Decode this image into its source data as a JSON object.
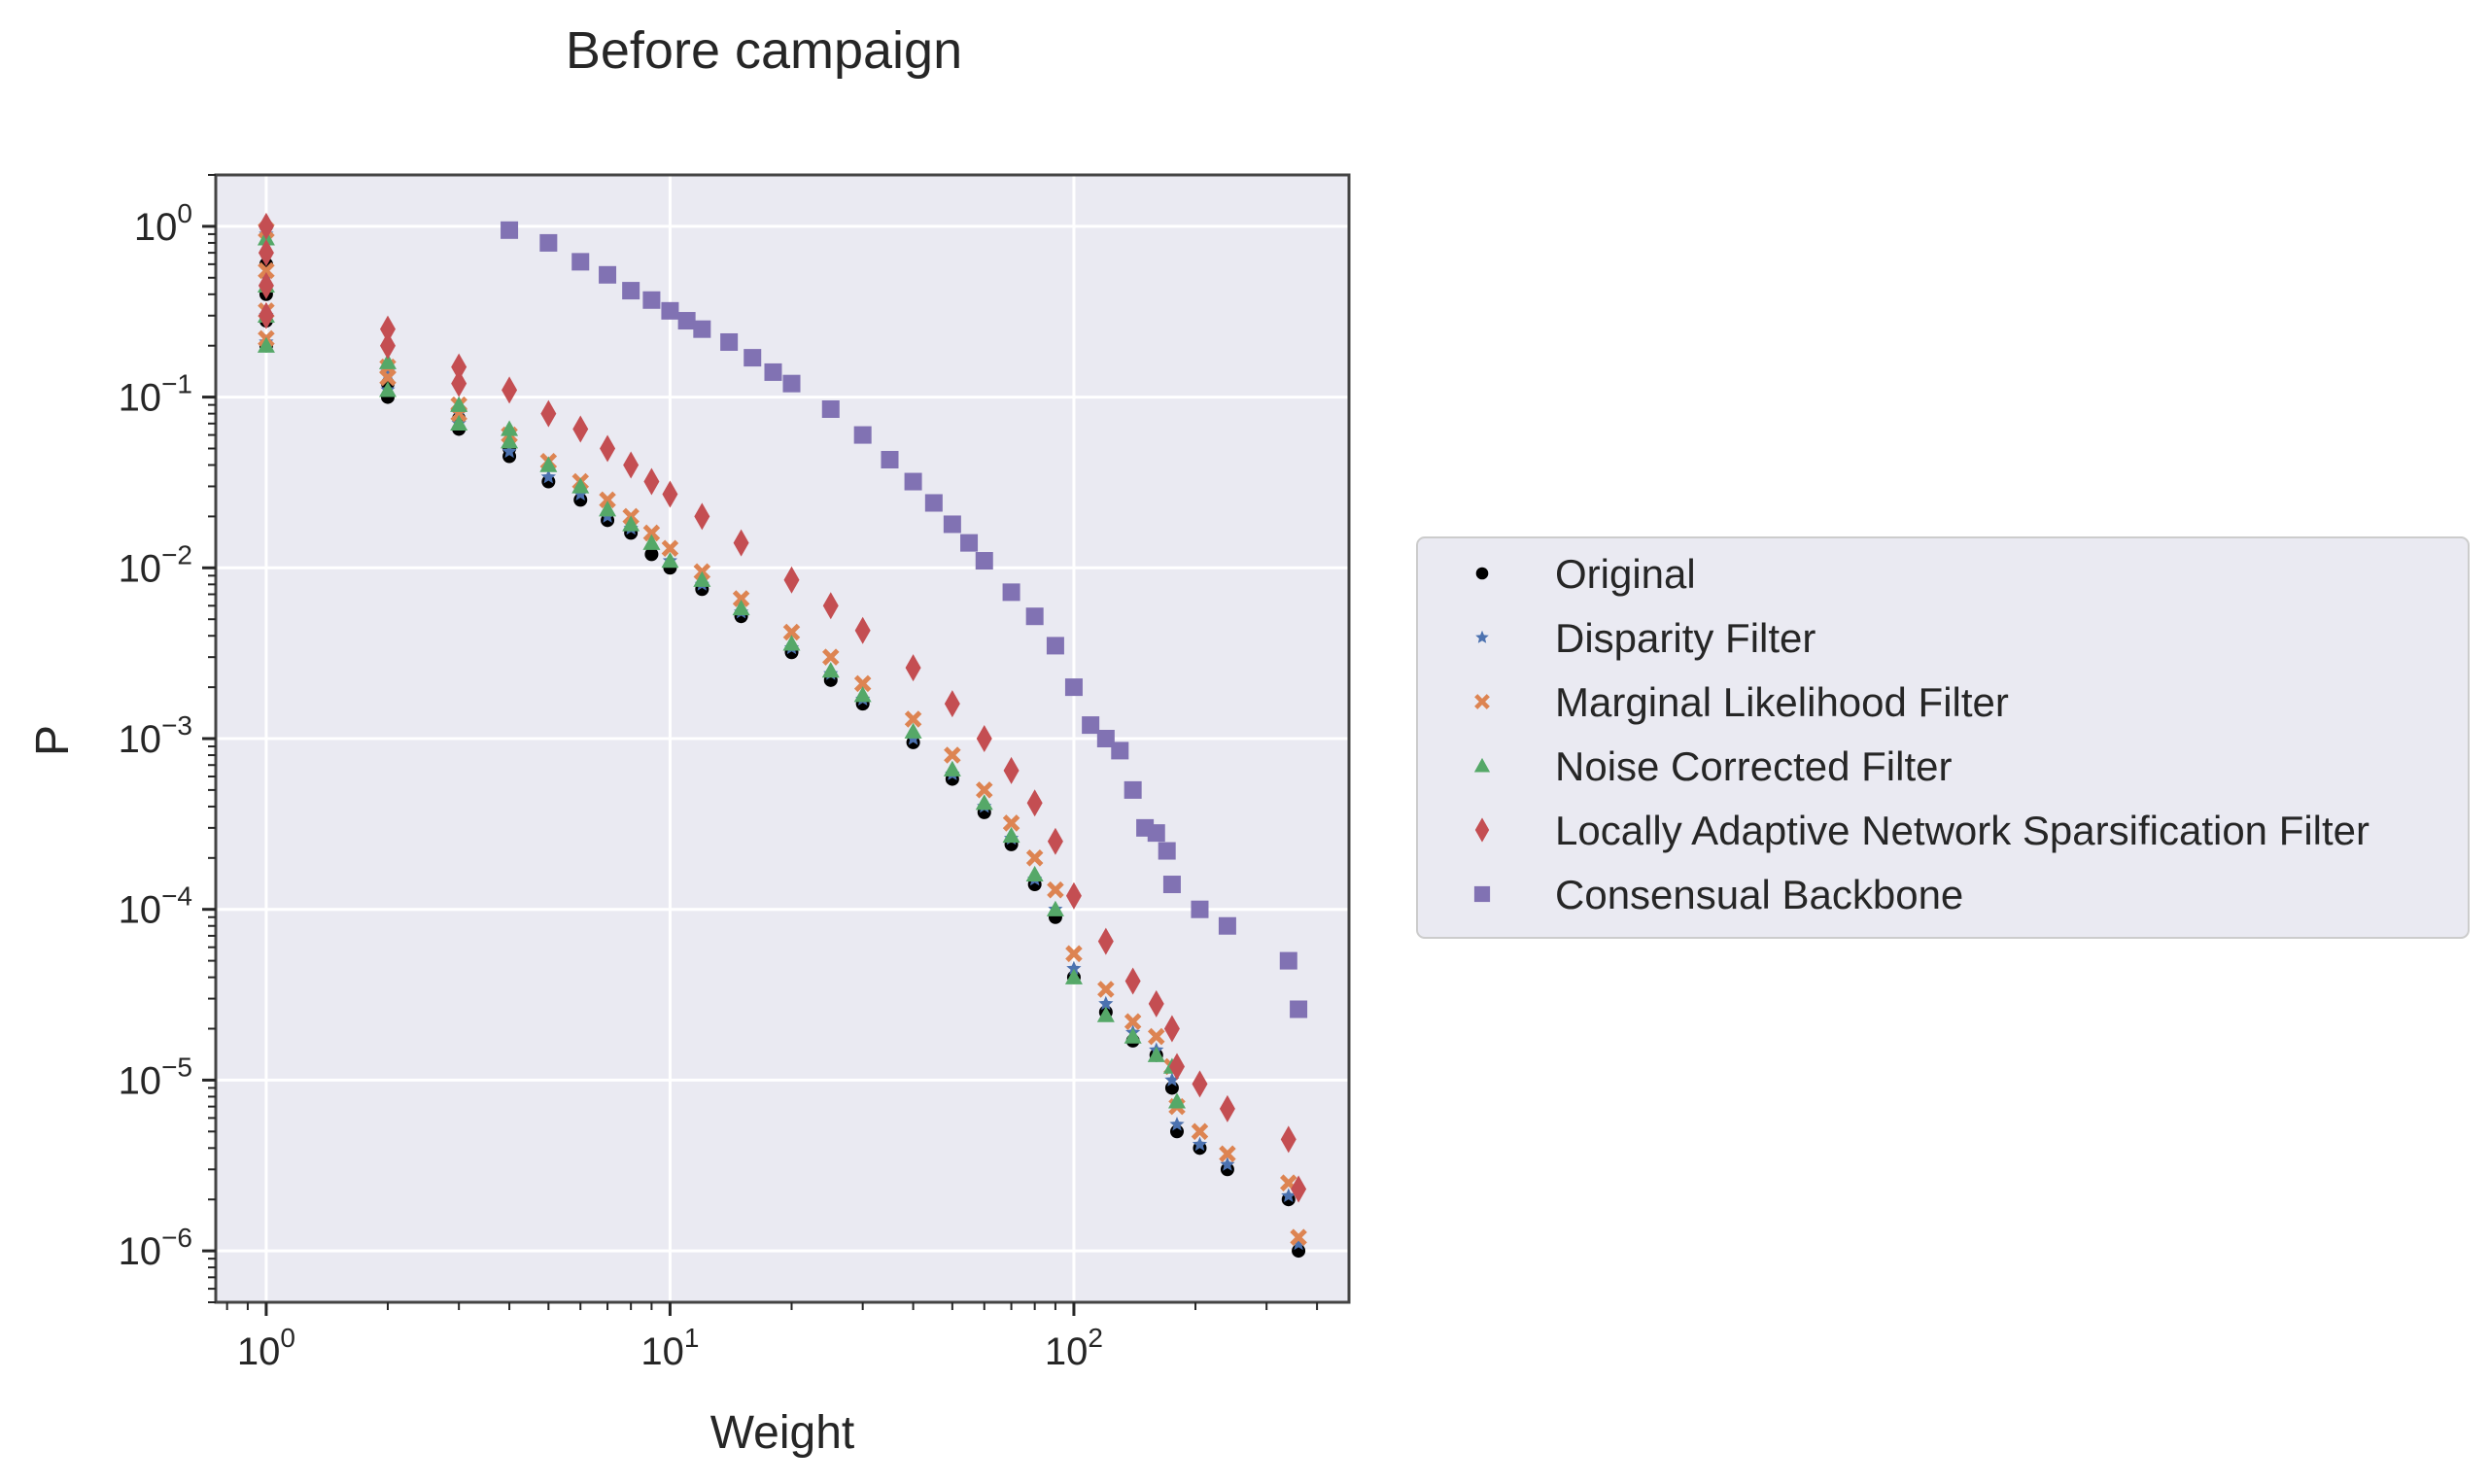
{
  "chart_data": {
    "type": "scatter",
    "title": "Before campaign",
    "xlabel": "Weight",
    "ylabel": "P",
    "x_scale": "log",
    "y_scale": "log",
    "xlim": [
      0.75,
      480
    ],
    "ylim": [
      5e-07,
      2
    ],
    "grid": true,
    "legend_position": "right-outside",
    "x_ticks": [
      {
        "value": 1,
        "base": "10",
        "exp": "0"
      },
      {
        "value": 10,
        "base": "10",
        "exp": "1"
      },
      {
        "value": 100,
        "base": "10",
        "exp": "2"
      }
    ],
    "y_ticks": [
      {
        "value": 1,
        "base": "10",
        "exp": "0"
      },
      {
        "value": 0.1,
        "base": "10",
        "exp": "−1"
      },
      {
        "value": 0.01,
        "base": "10",
        "exp": "−2"
      },
      {
        "value": 0.001,
        "base": "10",
        "exp": "−3"
      },
      {
        "value": 0.0001,
        "base": "10",
        "exp": "−4"
      },
      {
        "value": 1e-05,
        "base": "10",
        "exp": "−5"
      },
      {
        "value": 1e-06,
        "base": "10",
        "exp": "−6"
      }
    ],
    "series": [
      {
        "name": "Original",
        "marker": "circle",
        "color": "#000000",
        "points": [
          [
            1,
            1
          ],
          [
            1,
            0.6
          ],
          [
            1,
            0.4
          ],
          [
            1,
            0.28
          ],
          [
            1,
            0.2
          ],
          [
            2,
            0.1
          ],
          [
            2,
            0.12
          ],
          [
            3,
            0.065
          ],
          [
            3,
            0.075
          ],
          [
            4,
            0.045
          ],
          [
            4,
            0.05
          ],
          [
            5,
            0.032
          ],
          [
            6,
            0.025
          ],
          [
            7,
            0.019
          ],
          [
            8,
            0.016
          ],
          [
            9,
            0.012
          ],
          [
            10,
            0.01
          ],
          [
            12,
            0.0075
          ],
          [
            15,
            0.0052
          ],
          [
            20,
            0.0032
          ],
          [
            25,
            0.0022
          ],
          [
            30,
            0.0016
          ],
          [
            40,
            0.00095
          ],
          [
            50,
            0.00058
          ],
          [
            60,
            0.00037
          ],
          [
            70,
            0.00024
          ],
          [
            80,
            0.00014
          ],
          [
            90,
            9e-05
          ],
          [
            100,
            4e-05
          ],
          [
            120,
            2.5e-05
          ],
          [
            140,
            1.7e-05
          ],
          [
            160,
            1.4e-05
          ],
          [
            175,
            9e-06
          ],
          [
            180,
            5e-06
          ],
          [
            205,
            4e-06
          ],
          [
            240,
            3e-06
          ],
          [
            340,
            2e-06
          ],
          [
            360,
            1e-06
          ]
        ]
      },
      {
        "name": "Disparity Filter",
        "marker": "star",
        "color": "#4c72b0",
        "points": [
          [
            1,
            0.9
          ],
          [
            1,
            0.5
          ],
          [
            1,
            0.3
          ],
          [
            1,
            0.21
          ],
          [
            2,
            0.11
          ],
          [
            2,
            0.14
          ],
          [
            3,
            0.07
          ],
          [
            3,
            0.08
          ],
          [
            4,
            0.048
          ],
          [
            5,
            0.034
          ],
          [
            6,
            0.027
          ],
          [
            7,
            0.02
          ],
          [
            8,
            0.017
          ],
          [
            10,
            0.011
          ],
          [
            12,
            0.008
          ],
          [
            15,
            0.0055
          ],
          [
            20,
            0.0034
          ],
          [
            25,
            0.0024
          ],
          [
            30,
            0.0017
          ],
          [
            40,
            0.001
          ],
          [
            50,
            0.00062
          ],
          [
            60,
            0.0004
          ],
          [
            70,
            0.00026
          ],
          [
            80,
            0.00015
          ],
          [
            90,
            0.0001
          ],
          [
            100,
            4.5e-05
          ],
          [
            120,
            2.8e-05
          ],
          [
            140,
            1.9e-05
          ],
          [
            160,
            1.5e-05
          ],
          [
            175,
            1e-05
          ],
          [
            180,
            5.5e-06
          ],
          [
            205,
            4.2e-06
          ],
          [
            240,
            3.2e-06
          ],
          [
            340,
            2.1e-06
          ],
          [
            360,
            1.1e-06
          ]
        ]
      },
      {
        "name": "Marginal Likelihood Filter",
        "marker": "x",
        "color": "#dd8452",
        "points": [
          [
            1,
            0.95
          ],
          [
            1,
            0.55
          ],
          [
            1,
            0.32
          ],
          [
            1,
            0.22
          ],
          [
            2,
            0.13
          ],
          [
            2,
            0.15
          ],
          [
            3,
            0.08
          ],
          [
            3,
            0.09
          ],
          [
            4,
            0.06
          ],
          [
            5,
            0.042
          ],
          [
            6,
            0.032
          ],
          [
            7,
            0.025
          ],
          [
            8,
            0.02
          ],
          [
            9,
            0.016
          ],
          [
            10,
            0.013
          ],
          [
            12,
            0.0095
          ],
          [
            15,
            0.0066
          ],
          [
            20,
            0.0042
          ],
          [
            25,
            0.003
          ],
          [
            30,
            0.0021
          ],
          [
            40,
            0.0013
          ],
          [
            50,
            0.0008
          ],
          [
            60,
            0.0005
          ],
          [
            70,
            0.00032
          ],
          [
            80,
            0.0002
          ],
          [
            90,
            0.00013
          ],
          [
            100,
            5.5e-05
          ],
          [
            120,
            3.4e-05
          ],
          [
            140,
            2.2e-05
          ],
          [
            160,
            1.8e-05
          ],
          [
            175,
            1.2e-05
          ],
          [
            180,
            7e-06
          ],
          [
            205,
            5e-06
          ],
          [
            240,
            3.7e-06
          ],
          [
            340,
            2.5e-06
          ],
          [
            360,
            1.2e-06
          ]
        ]
      },
      {
        "name": "Noise Corrected Filter",
        "marker": "triangle",
        "color": "#55a868",
        "points": [
          [
            1,
            0.85
          ],
          [
            1,
            0.45
          ],
          [
            1,
            0.3
          ],
          [
            1,
            0.2
          ],
          [
            2,
            0.11
          ],
          [
            2,
            0.16
          ],
          [
            3,
            0.07
          ],
          [
            3,
            0.09
          ],
          [
            4,
            0.055
          ],
          [
            4,
            0.065
          ],
          [
            5,
            0.04
          ],
          [
            6,
            0.03
          ],
          [
            7,
            0.022
          ],
          [
            8,
            0.018
          ],
          [
            9,
            0.014
          ],
          [
            10,
            0.011
          ],
          [
            12,
            0.0085
          ],
          [
            15,
            0.0058
          ],
          [
            20,
            0.0036
          ],
          [
            25,
            0.0025
          ],
          [
            30,
            0.0018
          ],
          [
            40,
            0.0011
          ],
          [
            50,
            0.00066
          ],
          [
            60,
            0.00042
          ],
          [
            70,
            0.00027
          ],
          [
            80,
            0.00016
          ],
          [
            90,
            0.0001
          ],
          [
            100,
            4e-05
          ],
          [
            120,
            2.4e-05
          ],
          [
            140,
            1.8e-05
          ],
          [
            160,
            1.4e-05
          ],
          [
            175,
            1.2e-05
          ],
          [
            180,
            7.5e-06
          ]
        ]
      },
      {
        "name": "Locally Adaptive Network Sparsification Filter",
        "marker": "diamond",
        "color": "#c44e52",
        "points": [
          [
            1,
            1
          ],
          [
            1,
            0.7
          ],
          [
            1,
            0.45
          ],
          [
            1,
            0.3
          ],
          [
            2,
            0.25
          ],
          [
            2,
            0.2
          ],
          [
            3,
            0.15
          ],
          [
            3,
            0.12
          ],
          [
            4,
            0.11
          ],
          [
            5,
            0.08
          ],
          [
            6,
            0.065
          ],
          [
            7,
            0.05
          ],
          [
            8,
            0.04
          ],
          [
            9,
            0.032
          ],
          [
            10,
            0.027
          ],
          [
            12,
            0.02
          ],
          [
            15,
            0.014
          ],
          [
            20,
            0.0085
          ],
          [
            25,
            0.006
          ],
          [
            30,
            0.0043
          ],
          [
            40,
            0.0026
          ],
          [
            50,
            0.0016
          ],
          [
            60,
            0.001
          ],
          [
            70,
            0.00065
          ],
          [
            80,
            0.00042
          ],
          [
            90,
            0.00025
          ],
          [
            100,
            0.00012
          ],
          [
            120,
            6.5e-05
          ],
          [
            140,
            3.8e-05
          ],
          [
            160,
            2.8e-05
          ],
          [
            175,
            2e-05
          ],
          [
            180,
            1.2e-05
          ],
          [
            205,
            9.5e-06
          ],
          [
            240,
            6.8e-06
          ],
          [
            340,
            4.5e-06
          ],
          [
            360,
            2.3e-06
          ]
        ]
      },
      {
        "name": "Consensual Backbone",
        "marker": "square",
        "color": "#8172b3",
        "points": [
          [
            4,
            0.95
          ],
          [
            5,
            0.8
          ],
          [
            6,
            0.62
          ],
          [
            7,
            0.52
          ],
          [
            8,
            0.42
          ],
          [
            9,
            0.37
          ],
          [
            10,
            0.32
          ],
          [
            11,
            0.28
          ],
          [
            12,
            0.25
          ],
          [
            14,
            0.21
          ],
          [
            16,
            0.17
          ],
          [
            18,
            0.14
          ],
          [
            20,
            0.12
          ],
          [
            25,
            0.085
          ],
          [
            30,
            0.06
          ],
          [
            35,
            0.043
          ],
          [
            40,
            0.032
          ],
          [
            45,
            0.024
          ],
          [
            50,
            0.018
          ],
          [
            55,
            0.014
          ],
          [
            60,
            0.011
          ],
          [
            70,
            0.0072
          ],
          [
            80,
            0.0052
          ],
          [
            90,
            0.0035
          ],
          [
            100,
            0.002
          ],
          [
            110,
            0.0012
          ],
          [
            120,
            0.001
          ],
          [
            130,
            0.00085
          ],
          [
            140,
            0.0005
          ],
          [
            150,
            0.0003
          ],
          [
            160,
            0.00028
          ],
          [
            170,
            0.00022
          ],
          [
            175,
            0.00014
          ],
          [
            205,
            0.0001
          ],
          [
            240,
            8e-05
          ],
          [
            340,
            5e-05
          ],
          [
            360,
            2.6e-05
          ]
        ]
      }
    ]
  }
}
